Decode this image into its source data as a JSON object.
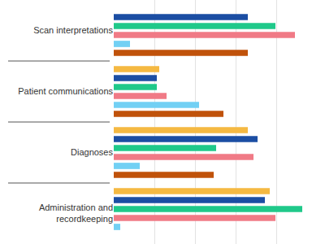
{
  "chart_data": {
    "type": "bar",
    "orientation": "horizontal",
    "categories": [
      "Scan interpretations",
      "Patient communications",
      "Diagnoses",
      "Administration and recordkeeping"
    ],
    "series": [
      {
        "color": "#f5b942",
        "values": [
          null,
          11.2,
          33,
          38.4
        ]
      },
      {
        "color": "#1b4ea3",
        "values": [
          33,
          10.6,
          35.4,
          37.2
        ]
      },
      {
        "color": "#1fc98a",
        "values": [
          39.8,
          10.6,
          25.2,
          46.4
        ]
      },
      {
        "color": "#f07a86",
        "values": [
          44.6,
          13,
          34.4,
          39.8
        ]
      },
      {
        "color": "#72d0f4",
        "values": [
          4,
          21,
          6.4,
          1.6
        ]
      },
      {
        "color": "#c0520a",
        "values": [
          33,
          27,
          24.6,
          null
        ]
      }
    ],
    "xlim": [
      0,
      50
    ],
    "xticks": [
      0,
      10,
      20,
      30,
      40,
      50
    ],
    "grid": true,
    "tick_labels": "y"
  }
}
